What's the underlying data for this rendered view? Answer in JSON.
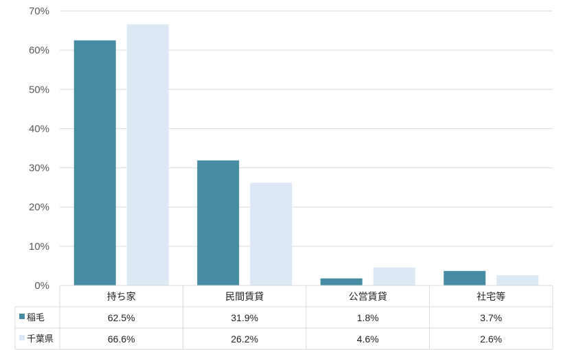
{
  "chart_data": {
    "type": "bar",
    "categories": [
      "持ち家",
      "民間賃貸",
      "公営賃貸",
      "社宅等"
    ],
    "series": [
      {
        "name": "稲毛",
        "values": [
          62.5,
          31.9,
          1.8,
          3.7
        ],
        "labels": [
          "62.5%",
          "31.9%",
          "1.8%",
          "3.7%"
        ],
        "color": "#468ca3"
      },
      {
        "name": "千葉県",
        "values": [
          66.6,
          26.2,
          4.6,
          2.6
        ],
        "labels": [
          "66.6%",
          "26.2%",
          "4.6%",
          "2.6%"
        ],
        "color": "#dce8f4"
      }
    ],
    "yticks": [
      "0%",
      "10%",
      "20%",
      "30%",
      "40%",
      "50%",
      "60%",
      "70%"
    ],
    "ylim": [
      0,
      70
    ],
    "grid": true,
    "legend": "data-table"
  }
}
